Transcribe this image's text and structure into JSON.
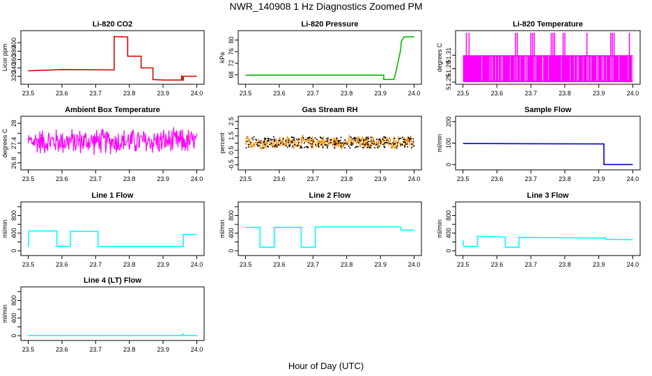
{
  "figure": {
    "title": "NWR_140908  1 Hz Diagnostics Zoomed PM",
    "xlabel": "Hour of Day (UTC)"
  },
  "chart_data": [
    {
      "type": "line",
      "title": "Li-820 CO2",
      "ylabel": "Licor ppm",
      "color": "#dd0000",
      "xlim": [
        23.5,
        24.0
      ],
      "xticks": [
        "23.5",
        "23.6",
        "23.7",
        "23.8",
        "23.9",
        "24.0"
      ],
      "ylim": [
        306,
        424
      ],
      "yticks": [
        320,
        340,
        360,
        380,
        400
      ],
      "x": [
        23.5,
        23.6,
        23.6,
        23.755,
        23.755,
        23.795,
        23.795,
        23.835,
        23.835,
        23.87,
        23.87,
        23.905,
        23.905,
        23.955,
        23.955,
        23.96,
        23.96,
        24.0
      ],
      "y": [
        333,
        336,
        336,
        335,
        415,
        414,
        368,
        368,
        340,
        340,
        312,
        311,
        311,
        311,
        322,
        309,
        320,
        320
      ]
    },
    {
      "type": "line",
      "title": "Li-820 Pressure",
      "ylabel": "kPa",
      "color": "#00bb00",
      "xlim": [
        23.5,
        24.0
      ],
      "xticks": [
        "23.5",
        "23.6",
        "23.7",
        "23.8",
        "23.9",
        "24.0"
      ],
      "ylim": [
        65.5,
        82.5
      ],
      "yticks": [
        68,
        72,
        76,
        80
      ],
      "x": [
        23.5,
        23.91,
        23.91,
        23.94,
        23.945,
        23.96,
        23.962,
        23.97,
        24.0
      ],
      "y": [
        67.9,
        67.9,
        66.4,
        66.4,
        68.5,
        76.5,
        79.5,
        81.1,
        81.1
      ]
    },
    {
      "type": "line",
      "title": "Li-820 Temperature",
      "ylabel": "degrees C",
      "color": "#ff00ff",
      "xlim": [
        23.5,
        24.0
      ],
      "xticks": [
        "23.5",
        "23.6",
        "23.7",
        "23.8",
        "23.9",
        "24.0"
      ],
      "ylim": [
        51.25,
        51.36
      ],
      "yticks": [
        51.25,
        51.28,
        51.31
      ],
      "x": [
        23.5,
        24.0
      ],
      "y": [
        51.25,
        51.31
      ],
      "spikes_to": 51.36,
      "spike_x": [
        23.51,
        23.518,
        23.655,
        23.66,
        23.7,
        23.705,
        23.71,
        23.76,
        23.765,
        23.77,
        23.795,
        23.8,
        23.865,
        23.935,
        23.94,
        23.945,
        23.99
      ]
    },
    {
      "type": "line",
      "title": "Ambient Box Temperature",
      "ylabel": "degrees C",
      "color": "#ff00ff",
      "xlim": [
        23.5,
        24.0
      ],
      "xticks": [
        "23.5",
        "23.6",
        "23.7",
        "23.8",
        "23.9",
        "24.0"
      ],
      "ylim": [
        26.65,
        28.15
      ],
      "yticks": [
        26.8,
        27.4,
        28.0
      ],
      "y_mid_ticks": [
        27.1,
        27.7
      ],
      "x": [
        23.5,
        24.0
      ],
      "y": [
        27.45,
        27.45
      ],
      "noise_amplitude": 0.45
    },
    {
      "type": "scatter",
      "title": "Gas Stream RH",
      "ylabel": "percent",
      "color": "#ee8800",
      "xlim": [
        23.5,
        24.0
      ],
      "xticks": [
        "23.5",
        "23.6",
        "23.7",
        "23.8",
        "23.9",
        "24.0"
      ],
      "ylim": [
        -0.7,
        2.7
      ],
      "yticks": [
        -0.5,
        0.5,
        1.5,
        2.5
      ],
      "y_mid_ticks": [
        0.0,
        1.0,
        2.0
      ],
      "x": [
        23.5,
        24.0
      ],
      "y": [
        1.05,
        1.05
      ],
      "noise_amplitude": 0.55
    },
    {
      "type": "line",
      "title": "Sample Flow",
      "ylabel": "ml/min",
      "color": "#0000cc",
      "xlim": [
        23.5,
        24.0
      ],
      "xticks": [
        "23.5",
        "23.6",
        "23.7",
        "23.8",
        "23.9",
        "24.0"
      ],
      "ylim": [
        -15,
        215
      ],
      "yticks": [
        0,
        100,
        200
      ],
      "x": [
        23.5,
        23.915,
        23.915,
        23.92,
        24.0
      ],
      "y": [
        98,
        96,
        0,
        0,
        0
      ]
    },
    {
      "type": "line",
      "title": "Line 1 Flow",
      "ylabel": "ml/min",
      "color": "#00ffff",
      "xlim": [
        23.5,
        24.0
      ],
      "xticks": [
        "23.5",
        "23.6",
        "23.7",
        "23.8",
        "23.9",
        "24.0"
      ],
      "ylim": [
        -60,
        1060
      ],
      "yticks": [
        0,
        400,
        800
      ],
      "y_mid_ticks": [
        200,
        600,
        1000
      ],
      "x": [
        23.5,
        23.502,
        23.505,
        23.585,
        23.585,
        23.625,
        23.625,
        23.707,
        23.707,
        23.96,
        23.96,
        24.0
      ],
      "y": [
        80,
        440,
        450,
        450,
        100,
        100,
        440,
        440,
        95,
        95,
        370,
        370
      ]
    },
    {
      "type": "line",
      "title": "Line 2 Flow",
      "ylabel": "ml/min",
      "color": "#00ffff",
      "xlim": [
        23.5,
        24.0
      ],
      "xticks": [
        "23.5",
        "23.6",
        "23.7",
        "23.8",
        "23.9",
        "24.0"
      ],
      "ylim": [
        -60,
        1060
      ],
      "yticks": [
        0,
        400,
        800
      ],
      "y_mid_ticks": [
        200,
        600,
        1000
      ],
      "x": [
        23.5,
        23.543,
        23.543,
        23.585,
        23.585,
        23.665,
        23.665,
        23.707,
        23.707,
        23.96,
        23.962,
        24.0
      ],
      "y": [
        530,
        530,
        80,
        80,
        530,
        530,
        80,
        80,
        540,
        540,
        470,
        470
      ]
    },
    {
      "type": "line",
      "title": "Line 3 Flow",
      "ylabel": "ml/min",
      "color": "#00ffff",
      "xlim": [
        23.5,
        24.0
      ],
      "xticks": [
        "23.5",
        "23.6",
        "23.7",
        "23.8",
        "23.9",
        "24.0"
      ],
      "ylim": [
        -60,
        1060
      ],
      "yticks": [
        0,
        400,
        800
      ],
      "y_mid_ticks": [
        200,
        600,
        1000
      ],
      "x": [
        23.5,
        23.502,
        23.502,
        23.543,
        23.543,
        23.625,
        23.625,
        23.665,
        23.665,
        23.92,
        23.92,
        24.0
      ],
      "y": [
        240,
        100,
        100,
        100,
        330,
        310,
        80,
        80,
        300,
        290,
        260,
        250
      ]
    },
    {
      "type": "line",
      "title": "Line 4 (LT) Flow",
      "ylabel": "ml/min",
      "color": "#00ffff",
      "xlim": [
        23.5,
        24.0
      ],
      "xticks": [
        "23.5",
        "23.6",
        "23.7",
        "23.8",
        "23.9",
        "24.0"
      ],
      "ylim": [
        -60,
        1060
      ],
      "yticks": [
        0,
        400,
        800
      ],
      "y_mid_ticks": [
        200,
        600,
        1000
      ],
      "x": [
        23.5,
        23.955,
        23.958,
        23.961,
        24.0
      ],
      "y": [
        5,
        5,
        40,
        5,
        5
      ]
    }
  ]
}
